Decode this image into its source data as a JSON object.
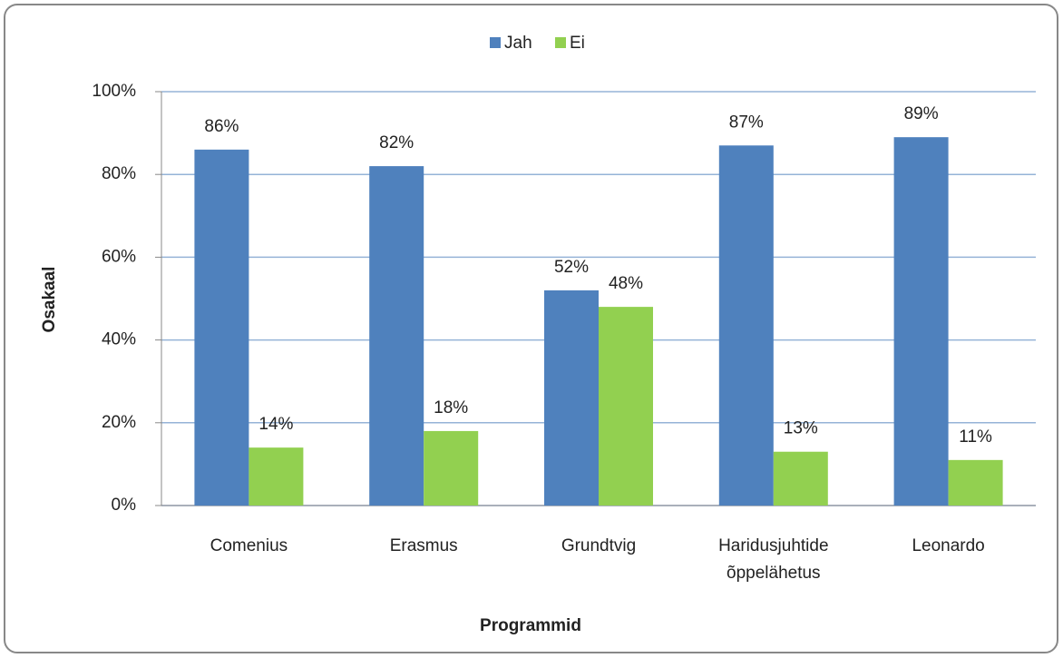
{
  "chart_data": {
    "type": "bar",
    "categories": [
      "Comenius",
      "Erasmus",
      "Grundtvig",
      "Haridusjuhtide õppelähetus",
      "Leonardo"
    ],
    "series": [
      {
        "name": "Jah",
        "color": "#4f81bd",
        "values": [
          86,
          82,
          52,
          87,
          89
        ],
        "value_labels": [
          "86%",
          "82%",
          "52%",
          "87%",
          "89%"
        ]
      },
      {
        "name": "Ei",
        "color": "#92d050",
        "values": [
          14,
          18,
          48,
          13,
          11
        ],
        "value_labels": [
          "14%",
          "18%",
          "48%",
          "13%",
          "11%"
        ]
      }
    ],
    "x_label": "Programmid",
    "y_label": "Osakaal",
    "ylim": [
      0,
      100
    ],
    "yticks": [
      {
        "value": 0,
        "label": "0%"
      },
      {
        "value": 20,
        "label": "20%"
      },
      {
        "value": 40,
        "label": "40%"
      },
      {
        "value": 60,
        "label": "60%"
      },
      {
        "value": 80,
        "label": "80%"
      },
      {
        "value": 100,
        "label": "100%"
      }
    ],
    "grid": true,
    "legend": "top"
  }
}
